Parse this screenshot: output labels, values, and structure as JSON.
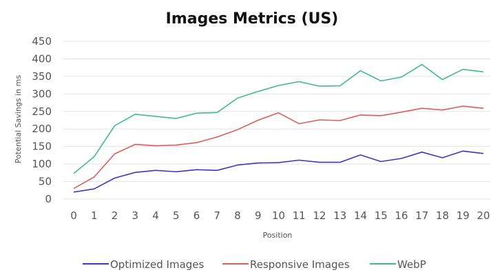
{
  "chart_data": {
    "type": "line",
    "title": "Images Metrics (US)",
    "xlabel": "Position",
    "ylabel": "Potential Savings in ms",
    "x": [
      0,
      1,
      2,
      3,
      4,
      5,
      6,
      7,
      8,
      9,
      10,
      11,
      12,
      13,
      14,
      15,
      16,
      17,
      18,
      19,
      20
    ],
    "ylim": [
      0,
      450
    ],
    "yticks": [
      0,
      50,
      100,
      150,
      200,
      250,
      300,
      350,
      400,
      450
    ],
    "grid": "horizontal",
    "legend_position": "bottom",
    "series": [
      {
        "name": "Optimized Images",
        "color": "#3b36c9",
        "values": [
          20,
          29,
          60,
          76,
          82,
          78,
          84,
          82,
          97,
          103,
          104,
          111,
          105,
          105,
          126,
          107,
          116,
          134,
          118,
          137,
          130
        ]
      },
      {
        "name": "Responsive Images",
        "color": "#e05b57",
        "values": [
          30,
          63,
          129,
          156,
          152,
          154,
          161,
          177,
          198,
          225,
          246,
          215,
          226,
          224,
          240,
          238,
          248,
          259,
          254,
          265,
          259
        ]
      },
      {
        "name": "WebP",
        "color": "#3fba8f",
        "values": [
          73,
          121,
          209,
          242,
          236,
          230,
          245,
          247,
          288,
          307,
          324,
          335,
          322,
          323,
          366,
          337,
          348,
          384,
          341,
          370,
          363
        ]
      }
    ]
  }
}
